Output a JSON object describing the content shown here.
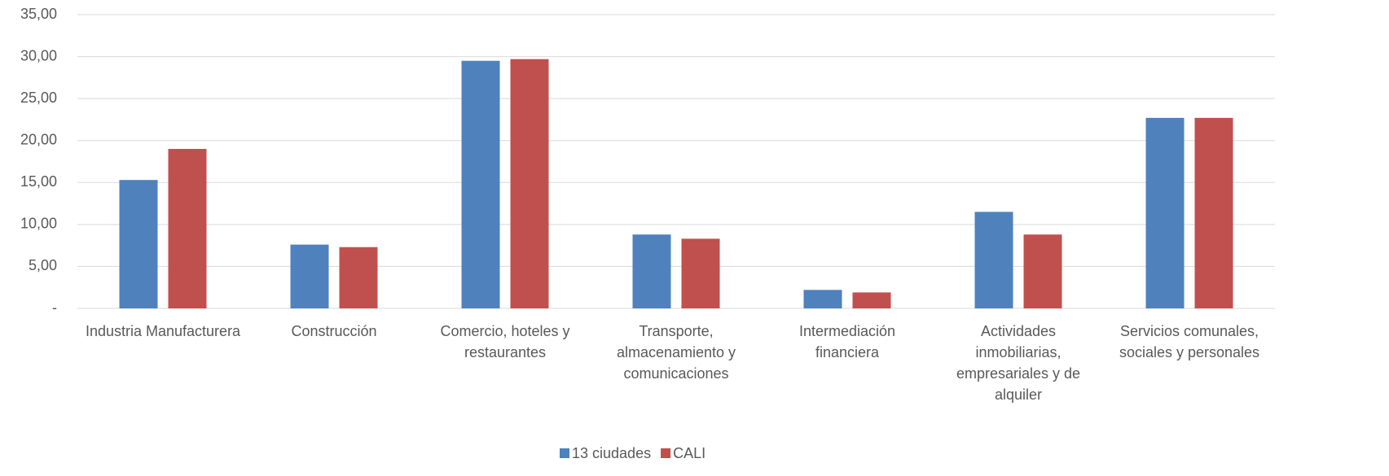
{
  "chart_data": {
    "type": "bar",
    "categories": [
      "Industria Manufacturera",
      "Construcción",
      "Comercio, hoteles y restaurantes",
      "Transporte, almacenamiento y comunicaciones",
      "Intermediación financiera",
      "Actividades inmobiliarias, empresariales y de alquiler",
      "Servicios comunales, sociales y personales"
    ],
    "series": [
      {
        "name": "13 ciudades",
        "color": "#4f81bd",
        "values": [
          15.3,
          7.6,
          29.5,
          8.8,
          2.2,
          11.5,
          22.7
        ]
      },
      {
        "name": "CALI",
        "color": "#c0504d",
        "values": [
          19.0,
          7.3,
          29.7,
          8.3,
          1.9,
          8.8,
          22.7
        ]
      }
    ],
    "ylim": [
      0,
      35
    ],
    "yticks": [
      {
        "value": 0,
        "label": "-"
      },
      {
        "value": 5,
        "label": "5,00"
      },
      {
        "value": 10,
        "label": "10,00"
      },
      {
        "value": 15,
        "label": "15,00"
      },
      {
        "value": 20,
        "label": "20,00"
      },
      {
        "value": 25,
        "label": "25,00"
      },
      {
        "value": 30,
        "label": "30,00"
      },
      {
        "value": 35,
        "label": "35,00"
      }
    ],
    "grid": true,
    "legend": "bottom"
  }
}
